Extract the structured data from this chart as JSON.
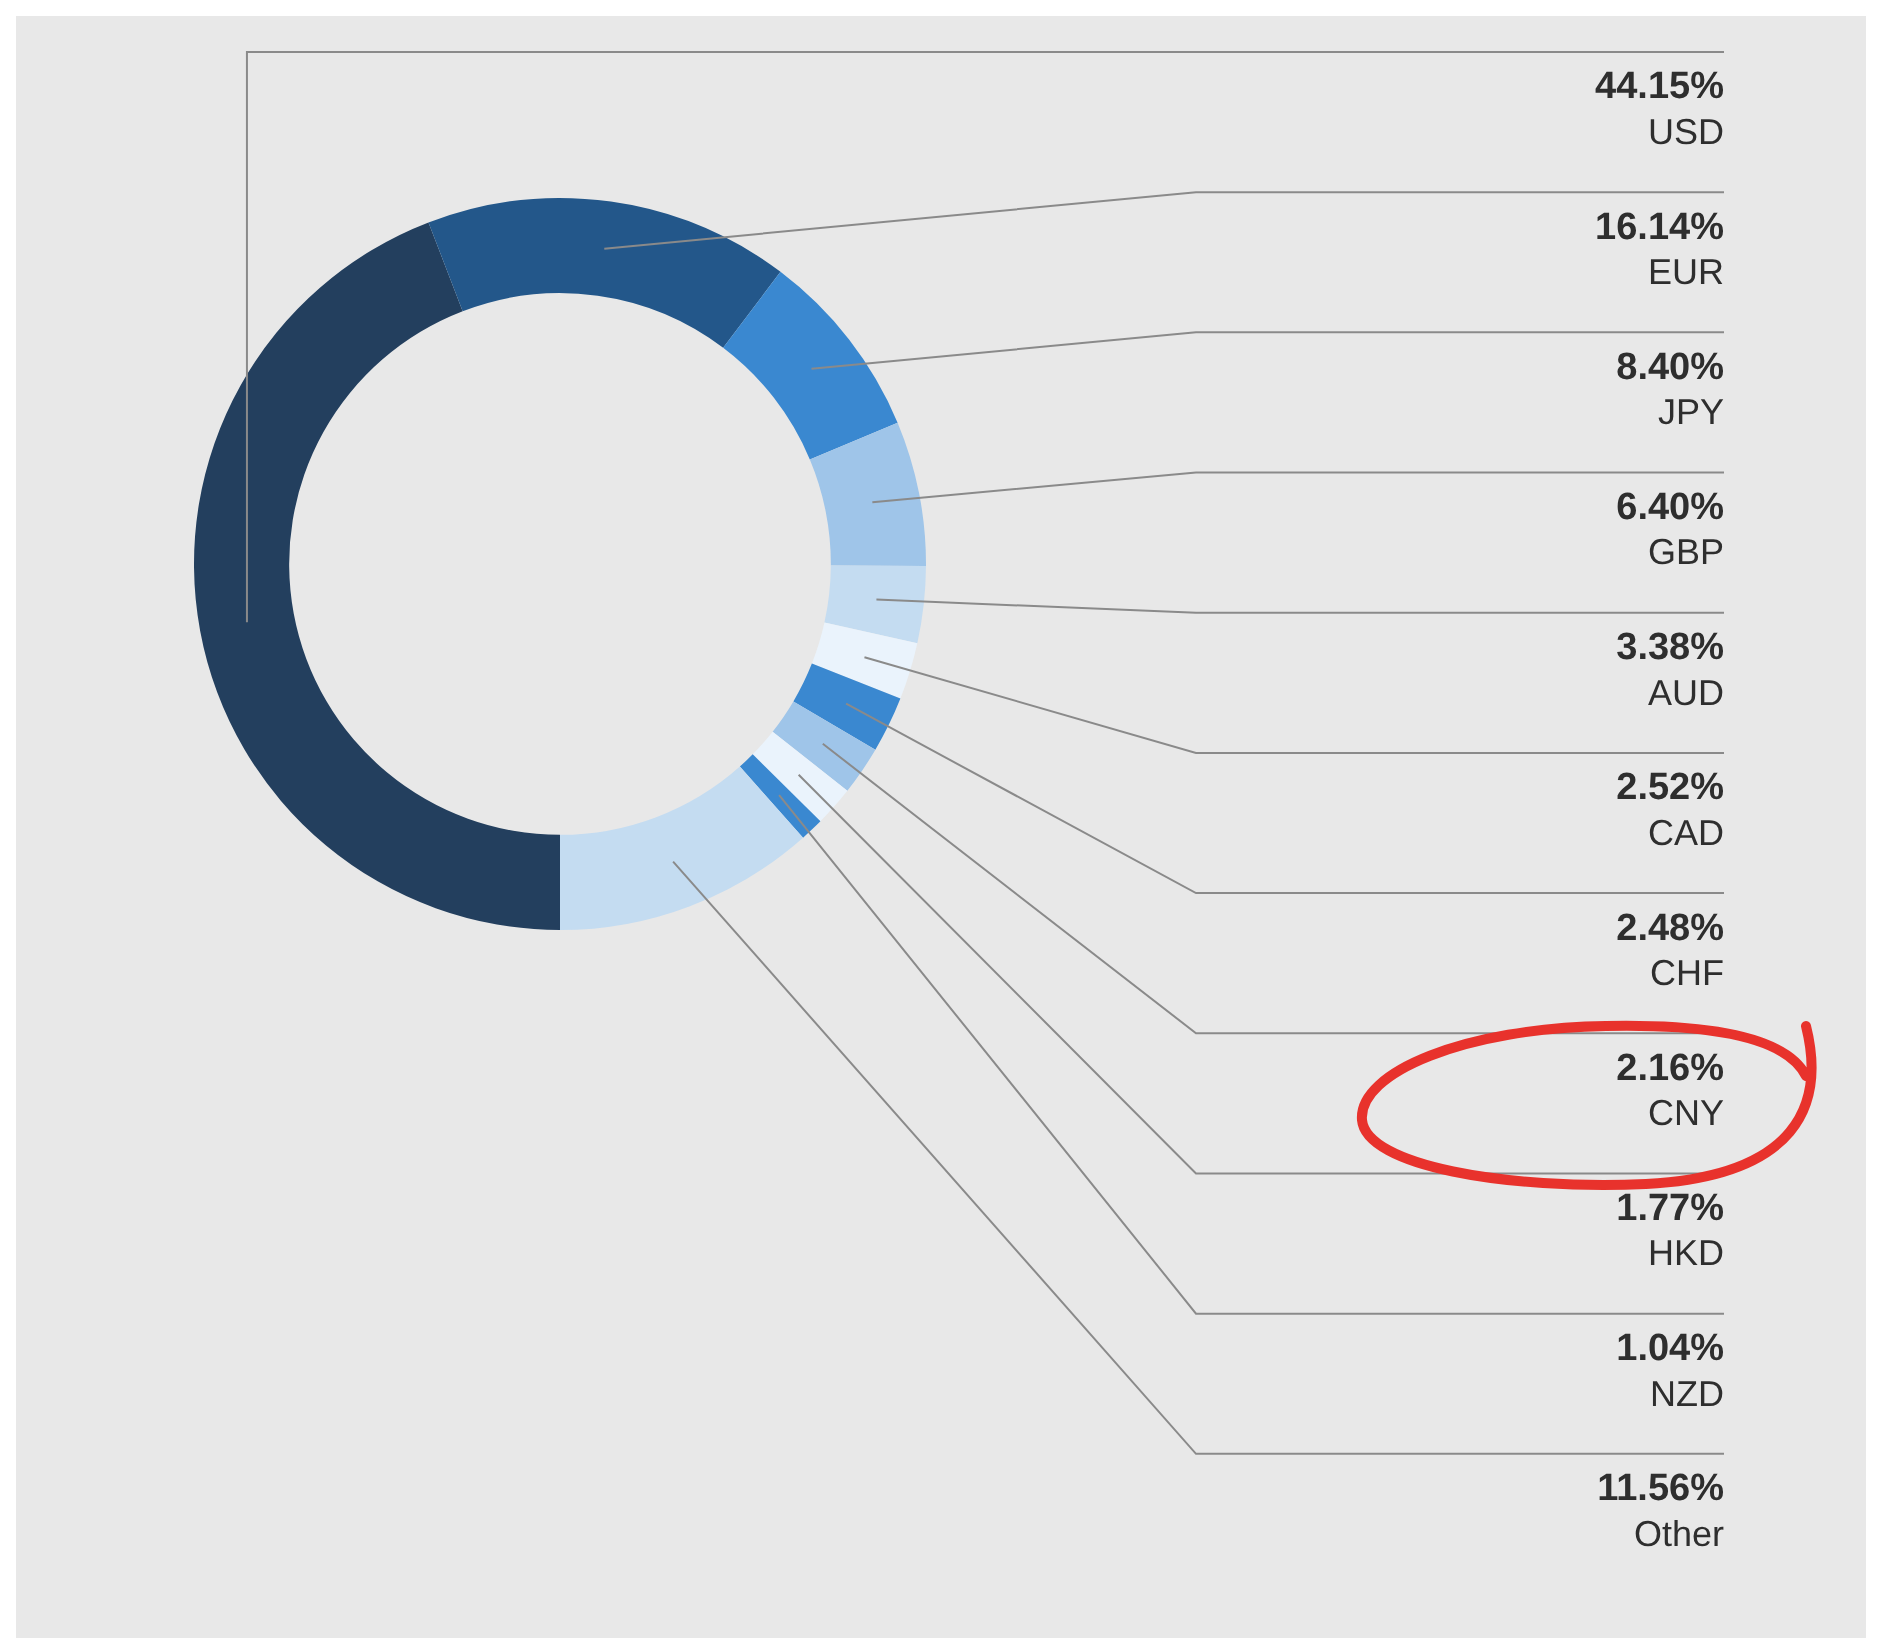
{
  "chart_data": {
    "type": "donut",
    "categories": [
      "USD",
      "EUR",
      "JPY",
      "GBP",
      "AUD",
      "CAD",
      "CHF",
      "CNY",
      "HKD",
      "NZD",
      "Other"
    ],
    "values": [
      44.15,
      16.14,
      8.4,
      6.4,
      3.38,
      2.52,
      2.48,
      2.16,
      1.77,
      1.04,
      11.56
    ],
    "value_labels": [
      "44.15%",
      "16.14%",
      "8.40%",
      "6.40%",
      "3.38%",
      "2.52%",
      "2.48%",
      "2.16%",
      "1.77%",
      "1.04%",
      "11.56%"
    ],
    "colors": [
      "#233f5e",
      "#23578a",
      "#3a88d0",
      "#9fc5e9",
      "#c4dcf1",
      "#eaf3fc",
      "#3a88d0",
      "#9fc5e9",
      "#eaf3fc",
      "#3a88d0",
      "#c4dcf1"
    ]
  }
}
